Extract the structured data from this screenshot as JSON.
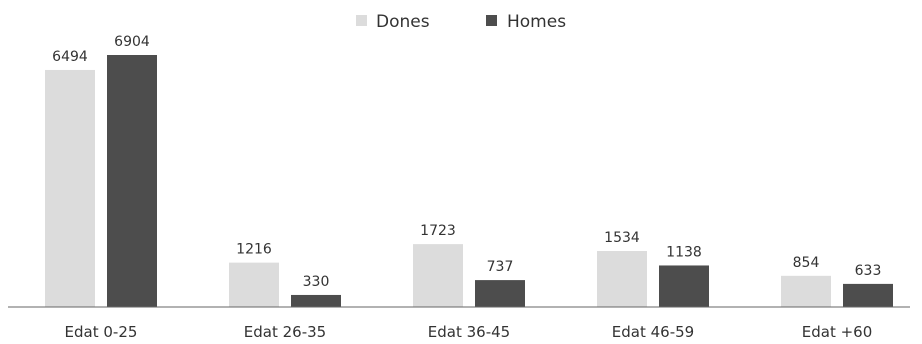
{
  "chart_data": {
    "type": "bar",
    "categories": [
      "Edat 0-25",
      "Edat 26-35",
      "Edat 36-45",
      "Edat 46-59",
      "Edat +60"
    ],
    "series": [
      {
        "name": "Dones",
        "color": "#dcdcdc",
        "values": [
          6494,
          1216,
          1723,
          1534,
          854
        ]
      },
      {
        "name": "Homes",
        "color": "#4d4d4d",
        "values": [
          6904,
          330,
          737,
          1138,
          633
        ]
      }
    ],
    "title": "",
    "xlabel": "",
    "ylabel": "",
    "ylim": [
      0,
      7000
    ],
    "legend": "top-center",
    "grid": false
  }
}
